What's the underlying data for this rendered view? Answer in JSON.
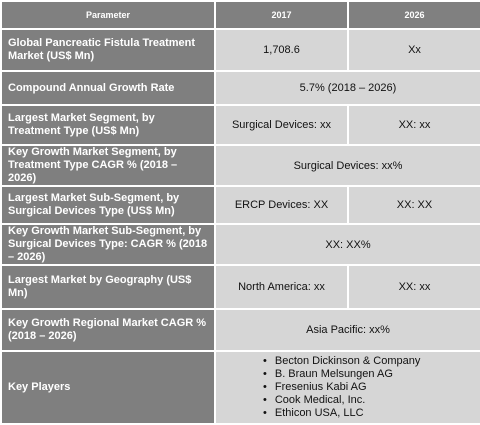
{
  "header": {
    "parameter": "Parameter",
    "col_2017": "2017",
    "col_2026": "2026"
  },
  "rows": [
    {
      "label": "Global Pancreatic Fistula Treatment Market (US$ Mn)",
      "v2017": "1,708.6",
      "v2026": "Xx"
    },
    {
      "label": "Compound Annual Growth Rate",
      "value": "5.7% (2018 – 2026)"
    },
    {
      "label": "Largest Market Segment, by Treatment Type (US$ Mn)",
      "v2017": "Surgical Devices: xx",
      "v2026": "XX: xx"
    },
    {
      "label": "Key Growth Market Segment, by Treatment Type CAGR % (2018 – 2026)",
      "value": "Surgical Devices: xx%"
    },
    {
      "label": "Largest Market Sub-Segment, by Surgical Devices Type (US$ Mn)",
      "v2017": "ERCP Devices: XX",
      "v2026": "XX: XX"
    },
    {
      "label": "Key Growth Market Sub-Segment, by Surgical Devices Type: CAGR % (2018 – 2026)",
      "value": "XX: XX%"
    },
    {
      "label": "Largest Market by Geography (US$ Mn)",
      "v2017": "North America: xx",
      "v2026": "XX: xx"
    },
    {
      "label": "Key Growth Regional Market CAGR % (2018 – 2026)",
      "value": "Asia Pacific: xx%"
    },
    {
      "label": "Key Players",
      "players": [
        "Becton Dickinson & Company",
        "B. Braun Melsungen AG",
        "Fresenius Kabi AG",
        "Cook Medical, Inc.",
        "Ethicon USA, LLC"
      ]
    }
  ],
  "colors": {
    "label_bg": "#7f7f7f",
    "value_bg": "#d6d6d6",
    "header_bg": "#808080",
    "text_light": "#ffffff"
  }
}
